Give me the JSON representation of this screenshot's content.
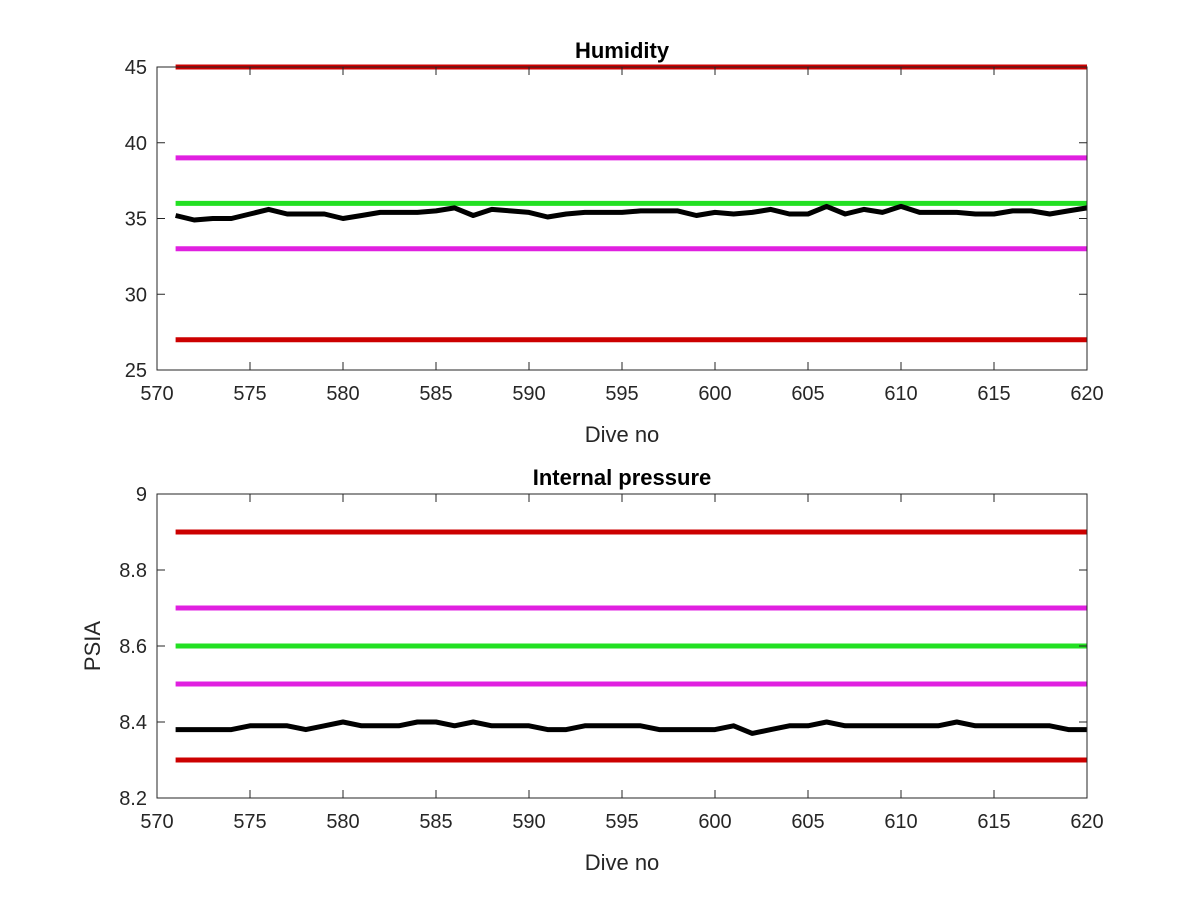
{
  "chart_data": [
    {
      "type": "line",
      "title": "Humidity",
      "xlabel": "Dive no",
      "ylabel": "",
      "xlim": [
        570,
        620
      ],
      "ylim": [
        25,
        45
      ],
      "xticks": [
        570,
        575,
        580,
        585,
        590,
        595,
        600,
        605,
        610,
        615,
        620
      ],
      "yticks": [
        25,
        30,
        35,
        40,
        45
      ],
      "grid": false,
      "reference_lines": [
        {
          "y": 45,
          "color": "#cc0000"
        },
        {
          "y": 39,
          "color": "#e020e0"
        },
        {
          "y": 36,
          "color": "#22e022"
        },
        {
          "y": 33,
          "color": "#e020e0"
        },
        {
          "y": 27,
          "color": "#cc0000"
        }
      ],
      "series": [
        {
          "color": "#000000",
          "x": [
            571,
            572,
            573,
            574,
            575,
            576,
            577,
            578,
            579,
            580,
            581,
            582,
            583,
            584,
            585,
            586,
            587,
            588,
            589,
            590,
            591,
            592,
            593,
            594,
            595,
            596,
            597,
            598,
            599,
            600,
            601,
            602,
            603,
            604,
            605,
            606,
            607,
            608,
            609,
            610,
            611,
            612,
            613,
            614,
            615,
            616,
            617,
            618,
            619,
            620
          ],
          "y": [
            35.2,
            34.9,
            35.0,
            35.0,
            35.3,
            35.6,
            35.3,
            35.3,
            35.3,
            35.0,
            35.2,
            35.4,
            35.4,
            35.4,
            35.5,
            35.7,
            35.2,
            35.6,
            35.5,
            35.4,
            35.1,
            35.3,
            35.4,
            35.4,
            35.4,
            35.5,
            35.5,
            35.5,
            35.2,
            35.4,
            35.3,
            35.4,
            35.6,
            35.3,
            35.3,
            35.8,
            35.3,
            35.6,
            35.4,
            35.8,
            35.4,
            35.4,
            35.4,
            35.3,
            35.3,
            35.5,
            35.5,
            35.3,
            35.5,
            35.7
          ]
        }
      ]
    },
    {
      "type": "line",
      "title": "Internal pressure",
      "xlabel": "Dive no",
      "ylabel": "PSIA",
      "xlim": [
        570,
        620
      ],
      "ylim": [
        8.2,
        9
      ],
      "xticks": [
        570,
        575,
        580,
        585,
        590,
        595,
        600,
        605,
        610,
        615,
        620
      ],
      "yticks": [
        8.2,
        8.4,
        8.6,
        8.8,
        9
      ],
      "ytick_labels": [
        "8.2",
        "8.4",
        "8.6",
        "8.8",
        "9"
      ],
      "grid": false,
      "reference_lines": [
        {
          "y": 8.9,
          "color": "#cc0000"
        },
        {
          "y": 8.7,
          "color": "#e020e0"
        },
        {
          "y": 8.6,
          "color": "#22e022"
        },
        {
          "y": 8.5,
          "color": "#e020e0"
        },
        {
          "y": 8.3,
          "color": "#cc0000"
        }
      ],
      "series": [
        {
          "color": "#000000",
          "x": [
            571,
            572,
            573,
            574,
            575,
            576,
            577,
            578,
            579,
            580,
            581,
            582,
            583,
            584,
            585,
            586,
            587,
            588,
            589,
            590,
            591,
            592,
            593,
            594,
            595,
            596,
            597,
            598,
            599,
            600,
            601,
            602,
            603,
            604,
            605,
            606,
            607,
            608,
            609,
            610,
            611,
            612,
            613,
            614,
            615,
            616,
            617,
            618,
            619,
            620
          ],
          "y": [
            8.38,
            8.38,
            8.38,
            8.38,
            8.39,
            8.39,
            8.39,
            8.38,
            8.39,
            8.4,
            8.39,
            8.39,
            8.39,
            8.4,
            8.4,
            8.39,
            8.4,
            8.39,
            8.39,
            8.39,
            8.38,
            8.38,
            8.39,
            8.39,
            8.39,
            8.39,
            8.38,
            8.38,
            8.38,
            8.38,
            8.39,
            8.37,
            8.38,
            8.39,
            8.39,
            8.4,
            8.39,
            8.39,
            8.39,
            8.39,
            8.39,
            8.39,
            8.4,
            8.39,
            8.39,
            8.39,
            8.39,
            8.39,
            8.38,
            8.38
          ]
        }
      ]
    }
  ]
}
